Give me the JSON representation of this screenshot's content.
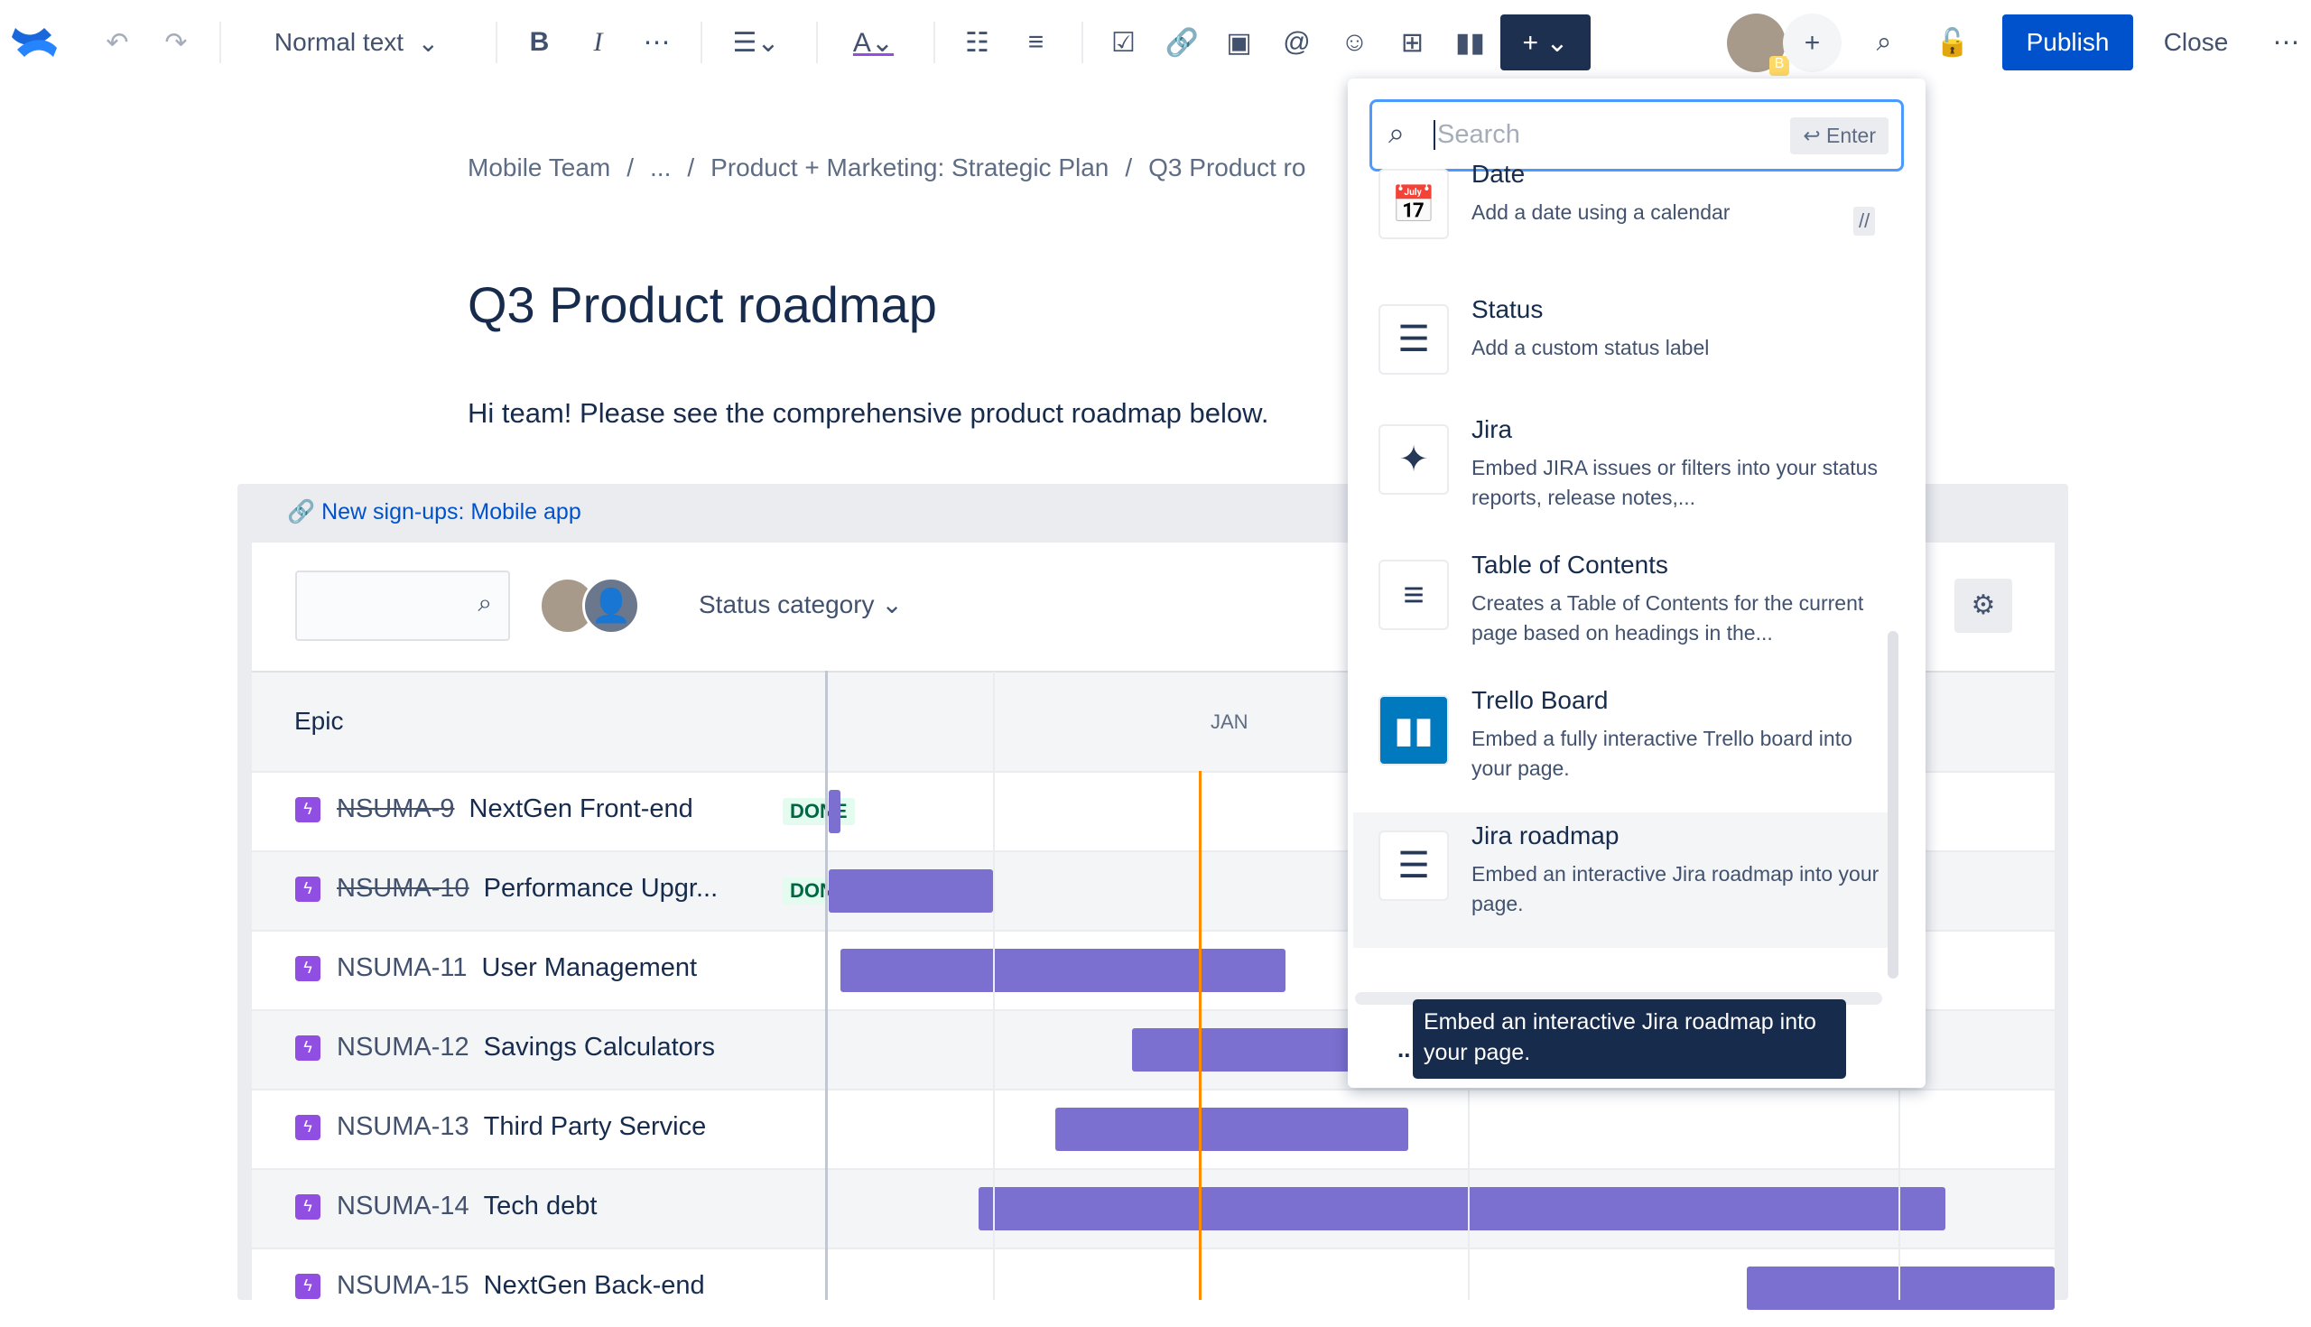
{
  "toolbar": {
    "text_style": "Normal text",
    "publish": "Publish",
    "close": "Close",
    "avatar_badge": "B"
  },
  "breadcrumb": [
    "Mobile Team",
    "/",
    "...",
    "/",
    "Product + Marketing: Strategic Plan",
    "/",
    "Q3 Product ro"
  ],
  "page": {
    "title": "Q3 Product roadmap",
    "intro": "Hi team! Please see the comprehensive product roadmap below."
  },
  "macro": {
    "link": "New sign-ups: Mobile app",
    "filter": "Status category",
    "epic_header": "Epic",
    "month": "JAN",
    "rows": [
      {
        "key": "NSUMA-9",
        "name": "NextGen Front-end",
        "status": "DONE"
      },
      {
        "key": "NSUMA-10",
        "name": "Performance Upgr...",
        "status": "DONE"
      },
      {
        "key": "NSUMA-11",
        "name": "User Management"
      },
      {
        "key": "NSUMA-12",
        "name": "Savings Calculators"
      },
      {
        "key": "NSUMA-13",
        "name": "Third Party Service"
      },
      {
        "key": "NSUMA-14",
        "name": "Tech debt"
      },
      {
        "key": "NSUMA-15",
        "name": "NextGen Back-end"
      }
    ]
  },
  "insert_menu": {
    "search_placeholder": "Search",
    "enter_hint": "↩ Enter",
    "shortcut": "//",
    "items": [
      {
        "title": "Date",
        "desc": "Add a date using a calendar"
      },
      {
        "title": "Status",
        "desc": "Add a custom status label"
      },
      {
        "title": "Jira",
        "desc": "Embed JIRA issues or filters into your status reports, release notes,..."
      },
      {
        "title": "Table of Contents",
        "desc": "Creates a Table of Contents for the current page based on headings in the..."
      },
      {
        "title": "Trello Board",
        "desc": "Embed a fully interactive Trello board into your page."
      },
      {
        "title": "Jira roadmap",
        "desc": "Embed an interactive Jira roadmap into your page."
      }
    ],
    "more": "..",
    "tooltip": "Embed an interactive Jira roadmap into your page."
  },
  "colors": {
    "accent": "#0052cc",
    "bar": "#7b6fd0",
    "today": "#ff8b00",
    "toolbar_dark": "#1e3050"
  }
}
